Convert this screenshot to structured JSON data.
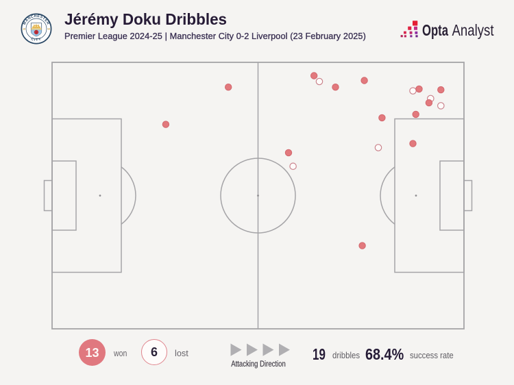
{
  "header": {
    "title": "Jérémy Doku Dribbles",
    "subtitle": "Premier League 2024-25 | Manchester City 0-2 Liverpool (23 February 2025)",
    "club_badge": {
      "name": "Manchester City crest",
      "text_top": "MANCHESTER",
      "text_bottom": "CITY",
      "year_left": "18",
      "year_right": "94",
      "navy": "#2C4A67",
      "light_blue": "#9FC7E8",
      "gold": "#DFAE3C",
      "rose_red": "#C8333C"
    }
  },
  "branding": {
    "brand_bold": "Opta",
    "brand_light": "Analyst",
    "mark": "opta-staircase-mark",
    "text_color": "#2A2135"
  },
  "chart_data": {
    "type": "scatter",
    "title": "Jérémy Doku Dribbles",
    "subtitle": "Premier League 2024-25 | Manchester City 0-2 Liverpool (23 February 2025)",
    "pitch": {
      "orientation": "horizontal",
      "attacking_direction": "left-to-right",
      "x_unit": "% of pitch length, 0 = own goal line, 100 = opposition goal line",
      "y_unit": "% of pitch width, 0 = top touchline, 100 = bottom touchline"
    },
    "legend_position": "bottom",
    "series": [
      {
        "name": "lost",
        "marker": "hollow",
        "fill": "#FEFBFA",
        "stroke": "#C9808A",
        "count": 6,
        "points": [
          {
            "x": 64.9,
            "y": 7.2
          },
          {
            "x": 87.6,
            "y": 10.7
          },
          {
            "x": 91.9,
            "y": 13.6
          },
          {
            "x": 94.4,
            "y": 16.3
          },
          {
            "x": 79.2,
            "y": 32.0
          },
          {
            "x": 58.5,
            "y": 39.0
          }
        ]
      },
      {
        "name": "won",
        "marker": "filled",
        "fill": "#E2797D",
        "stroke": "#D2666D",
        "count": 13,
        "points": [
          {
            "x": 63.6,
            "y": 5.0
          },
          {
            "x": 68.8,
            "y": 9.3
          },
          {
            "x": 75.8,
            "y": 6.8
          },
          {
            "x": 89.1,
            "y": 10.0
          },
          {
            "x": 94.4,
            "y": 10.3
          },
          {
            "x": 91.5,
            "y": 15.2
          },
          {
            "x": 88.3,
            "y": 19.5
          },
          {
            "x": 80.1,
            "y": 20.8
          },
          {
            "x": 87.6,
            "y": 30.5
          },
          {
            "x": 75.3,
            "y": 68.8
          },
          {
            "x": 42.8,
            "y": 9.3
          },
          {
            "x": 27.6,
            "y": 23.3
          },
          {
            "x": 57.4,
            "y": 33.9
          }
        ]
      }
    ]
  },
  "legend": {
    "won_count": "13",
    "won_label": "won",
    "lost_count": "6",
    "lost_label": "lost",
    "direction_label": "Attacking Direction",
    "won_fill": "#E0787F",
    "lost_stroke": "#E0858D",
    "arrow_color": "#B0AFB2"
  },
  "stats": {
    "dribbles_value": "19",
    "dribbles_label": "dribbles",
    "success_value": "68.4%",
    "success_label": "success rate"
  },
  "style": {
    "background": "#F5F4F2",
    "pitch_line_color": "#A5A4A7",
    "title_color": "#261B36",
    "label_gray": "#67646A"
  }
}
